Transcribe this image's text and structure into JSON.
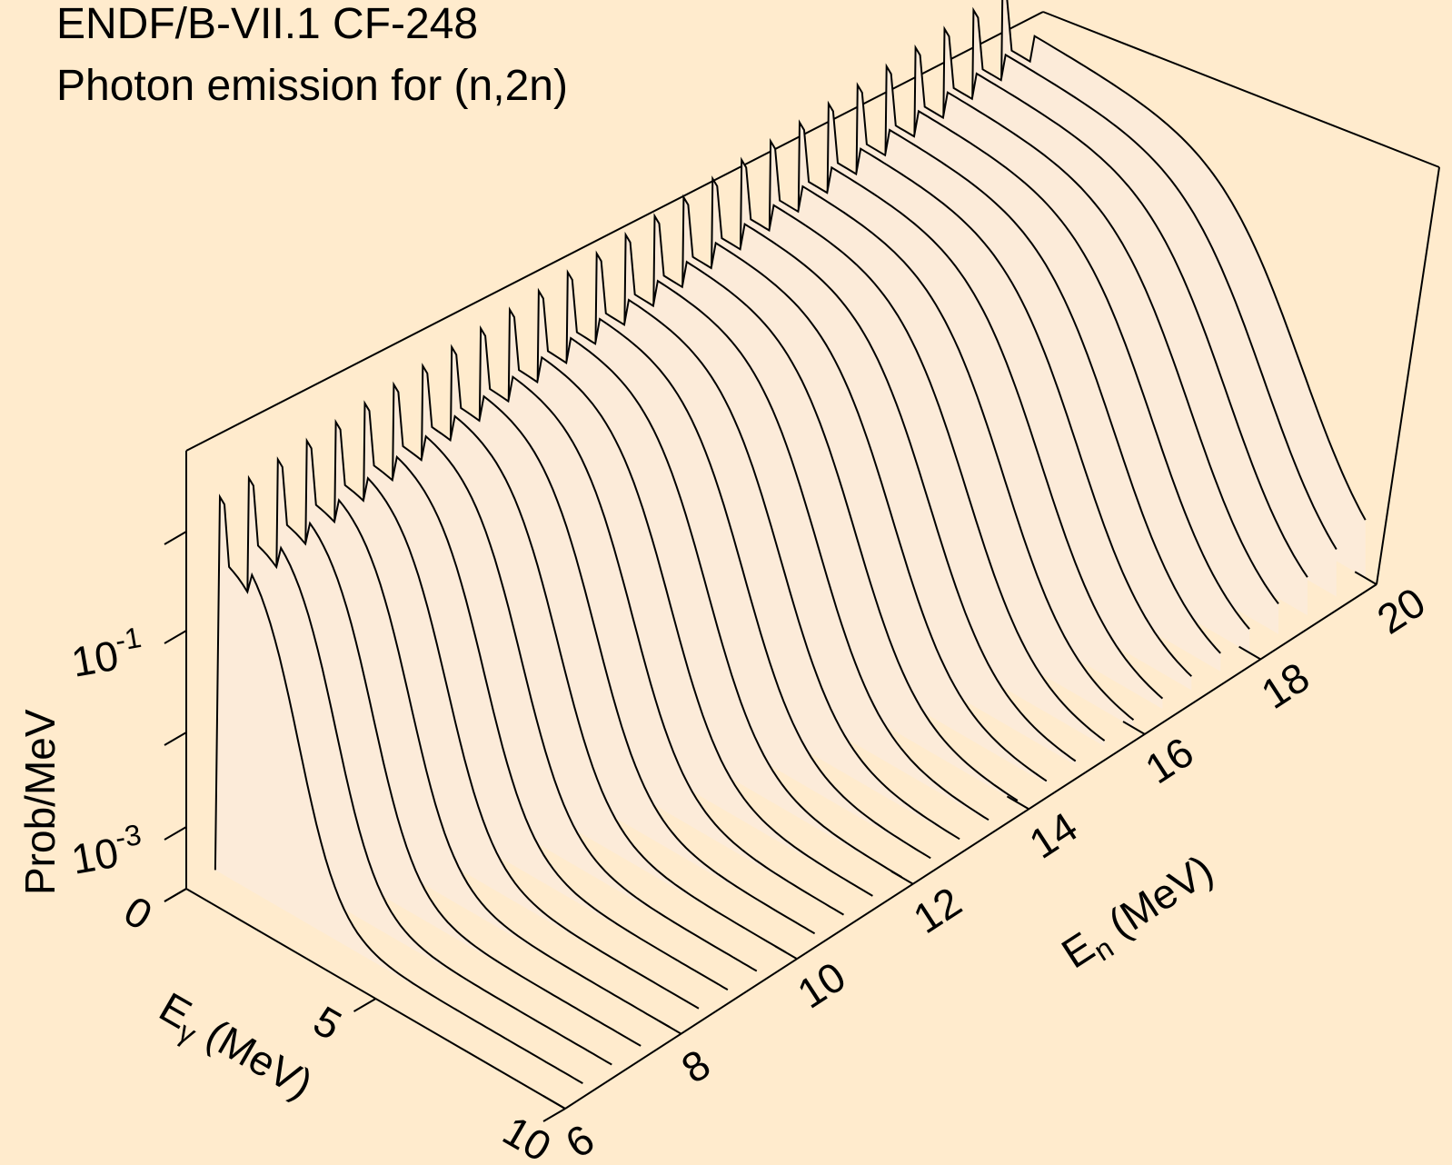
{
  "chart_data": {
    "type": "waterfall-3d",
    "title_line1": "ENDF/B-VII.1 CF-248",
    "title_line2": "Photon emission for (n,2n)",
    "x_axis": {
      "label_main": "E",
      "label_sub": "γ",
      "label_rest": " (MeV)",
      "range": [
        0,
        10
      ],
      "ticks": [
        0,
        5,
        10
      ],
      "tick_labels": [
        "0",
        "5",
        "10"
      ]
    },
    "y_axis": {
      "label_main": "E",
      "label_sub": "n",
      "label_rest": " (MeV)",
      "range": [
        6,
        20
      ],
      "ticks": [
        6,
        8,
        10,
        12,
        14,
        16,
        18,
        20
      ],
      "tick_labels": [
        "6",
        "8",
        "10",
        "12",
        "14",
        "16",
        "18",
        "20"
      ]
    },
    "z_axis": {
      "label": "Prob/MeV",
      "scale": "log",
      "tick_labels": [
        {
          "base": "10",
          "exp": "-1"
        },
        {
          "base": "10",
          "exp": "-3"
        }
      ]
    },
    "series_count": 28,
    "incident_energies_range": [
      6.5,
      20
    ],
    "line_color": "#000000",
    "fill_color": "#FCEBD9",
    "background_color": "#FFEBCD"
  }
}
